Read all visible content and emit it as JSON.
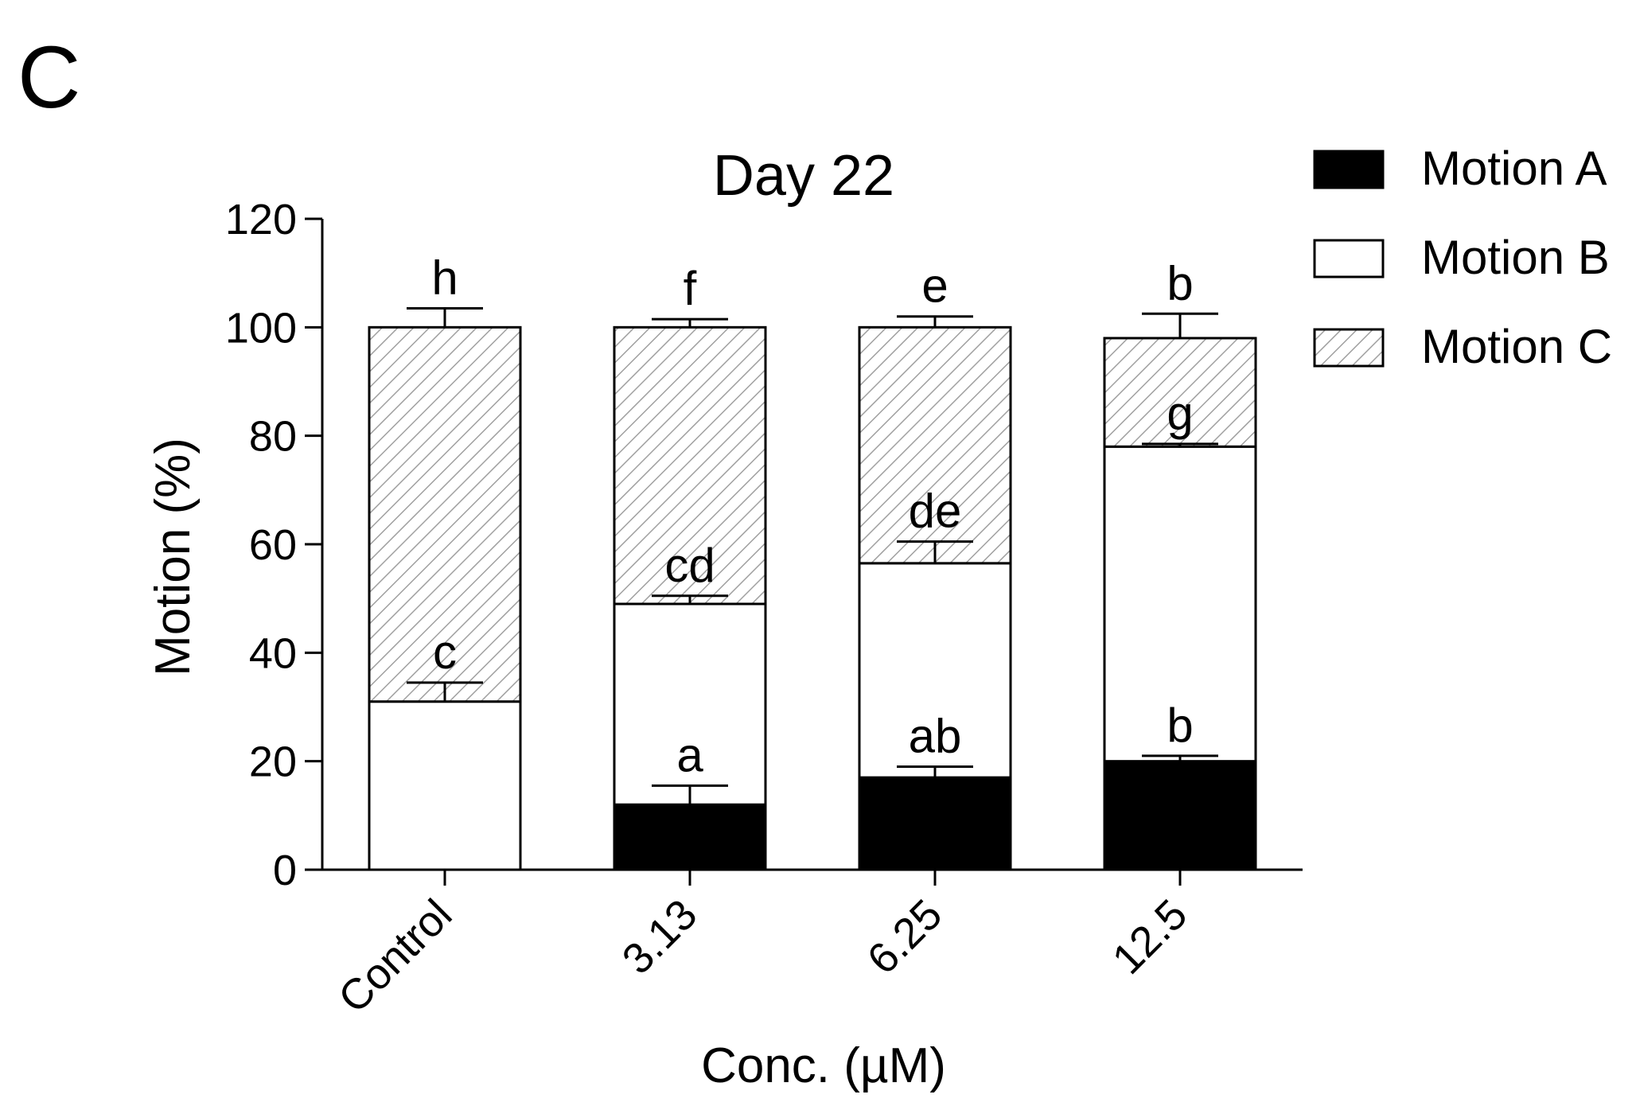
{
  "panel_label": "C",
  "chart_data": {
    "type": "bar",
    "stacked": true,
    "title": "Day 22",
    "xlabel": "Conc. (µM)",
    "ylabel": "Motion (%)",
    "ylim": [
      0,
      120
    ],
    "yticks": [
      "0",
      "20",
      "40",
      "60",
      "80",
      "100",
      "120"
    ],
    "categories": [
      "Control",
      "3.13",
      "6.25",
      "12.5"
    ],
    "grid": false,
    "legend_position": "top-right",
    "series": [
      {
        "name": "Motion A",
        "fill": "#000000",
        "pattern": "solid",
        "values": [
          0,
          12,
          17,
          20
        ],
        "errors": [
          0,
          3.5,
          2,
          1
        ],
        "sig_labels": [
          "",
          "a",
          "ab",
          "b"
        ]
      },
      {
        "name": "Motion B",
        "fill": "#ffffff",
        "pattern": "solid",
        "values": [
          31,
          37,
          39.5,
          58
        ],
        "errors": [
          3.5,
          1.5,
          4,
          0.5
        ],
        "sig_labels": [
          "c",
          "cd",
          "de",
          "g"
        ]
      },
      {
        "name": "Motion C",
        "fill": "#ffffff",
        "pattern": "hatched",
        "hatch_color": "#a0a0a0",
        "values": [
          69,
          51,
          43.5,
          20
        ],
        "errors": [
          3.5,
          1.5,
          2,
          4.5
        ],
        "sig_labels": [
          "h",
          "f",
          "e",
          "b"
        ]
      }
    ]
  }
}
